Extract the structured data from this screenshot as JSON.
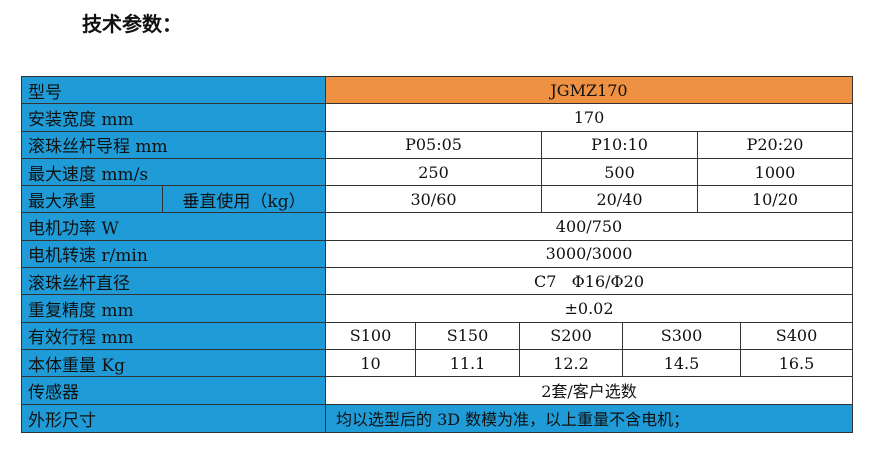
{
  "title": "技术参数：",
  "rows": {
    "model": {
      "label": "型号",
      "value": "JGMZ170"
    },
    "width": {
      "label": "安装宽度 mm",
      "value": "170"
    },
    "lead": {
      "label": "滚珠丝杆导程 mm",
      "values": [
        "P05:05",
        "P10:10",
        "P20:20"
      ]
    },
    "speed": {
      "label": "最大速度 mm/s",
      "values": [
        "250",
        "500",
        "1000"
      ]
    },
    "load": {
      "label": "最大承重",
      "sublabel": "垂直使用（kg）",
      "values": [
        "30/60",
        "20/40",
        "10/20"
      ]
    },
    "power": {
      "label": "电机功率 W",
      "value": "400/750"
    },
    "rpm": {
      "label": "电机转速 r/min",
      "value": "3000/3000"
    },
    "screw": {
      "label": "滚珠丝杆直径",
      "value": "C7   Φ16/Φ20"
    },
    "repeat": {
      "label": "重复精度 mm",
      "value": "±0.02"
    },
    "stroke": {
      "label": "有效行程 mm",
      "values": [
        "S100",
        "S150",
        "S200",
        "S300",
        "S400"
      ]
    },
    "weight": {
      "label": "本体重量 Kg",
      "values": [
        "10",
        "11.1",
        "12.2",
        "14.5",
        "16.5"
      ]
    },
    "sensor": {
      "label": "传感器",
      "value": "2套/客户选数"
    },
    "dims": {
      "label": "外形尺寸",
      "value": "均以选型后的 3D 数模为准，以上重量不含电机；"
    }
  },
  "colors": {
    "label_bg": "#1f9cd8",
    "header_bg": "#ef9143"
  }
}
